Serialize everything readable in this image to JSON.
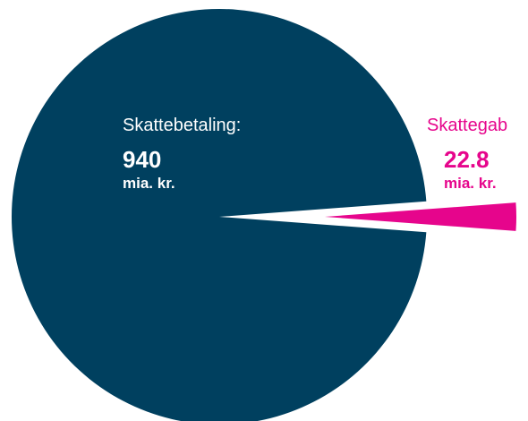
{
  "chart_data": {
    "type": "pie",
    "slices": [
      {
        "name": "Skattebetaling:",
        "value": 940,
        "value_label": "940",
        "unit": "mia. kr.",
        "color": "#00405f"
      },
      {
        "name": "Skattegab",
        "value": 22.8,
        "value_label": "22.8",
        "unit": "mia. kr.",
        "color": "#e6058c"
      }
    ],
    "exploded_slice": "Skattegab",
    "legend": "none"
  }
}
